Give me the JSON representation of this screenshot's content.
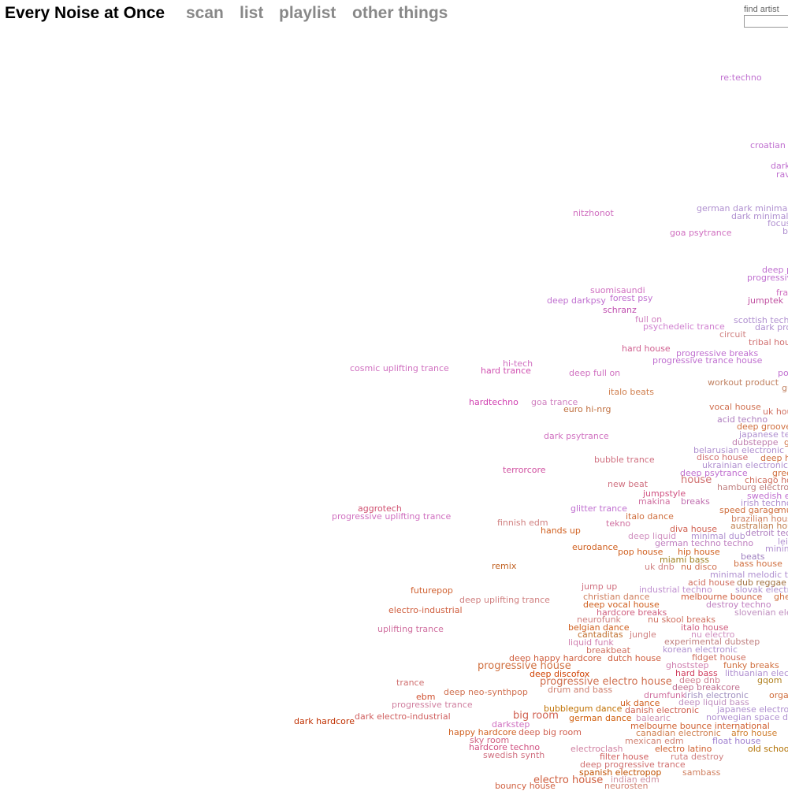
{
  "header": {
    "title": "Every Noise at Once",
    "nav": [
      "scan",
      "list",
      "playlist",
      "other things"
    ]
  },
  "search": {
    "label": "find artist"
  },
  "genres": [
    "re:techno",
    "croatian e",
    "dark",
    "rav",
    "nitzhonot",
    "german dark minimal tec",
    "dark minimal te",
    "focus",
    "goa psytrance",
    "b",
    "deep p",
    "progressive",
    "frar",
    "suomisaundi",
    "forest psy",
    "deep darkpsy",
    "jumptek",
    "schranz",
    "full on",
    "scottish techno",
    "psychedelic trance",
    "dark prog",
    "circuit",
    "tribal hous",
    "hard house",
    "progressive breaks",
    "hi-tech",
    "progressive trance house",
    "cosmic uplifting trance",
    "hard trance",
    "deep full on",
    "pol",
    "workout product",
    "gu",
    "italo beats",
    "hardtechno",
    "goa trance",
    "euro hi-nrg",
    "vocal house",
    "uk hou",
    "acid techno",
    "deep groove",
    "dark psytrance",
    "japanese tec",
    "dubsteppe",
    "g",
    "belarusian electronic",
    "disco house",
    "deep h",
    "bubble trance",
    "ukrainian electronic",
    "terrorcore",
    "deep psytrance",
    "gree",
    "house",
    "new beat",
    "chicago ho",
    "hamburg electroni",
    "jumpstyle",
    "swedish el",
    "makina",
    "breaks",
    "irish techno",
    "aggrotech",
    "glitter trance",
    "speed garage",
    "mu",
    "progressive uplifting trance",
    "italo dance",
    "brazilian house",
    "finnish edm",
    "tekno",
    "australian hous",
    "diva house",
    "hands up",
    "deep liquid",
    "minimal dub",
    "detroit tech",
    "german techno techno",
    "eurodance",
    "lei",
    "pop house",
    "hip house",
    "minim",
    "miami bass",
    "beats",
    "remix",
    "uk dnb",
    "nu disco",
    "bass house",
    "minimal melodic tech",
    "acid house",
    "dub reggae",
    "jump up",
    "futurepop",
    "industrial techno",
    "slovak electr",
    "christian dance",
    "melbourne bounce",
    "ghe",
    "deep uplifting trance",
    "deep vocal house",
    "destroy techno",
    "electro-industrial",
    "hardcore breaks",
    "slovenian ele",
    "neurofunk",
    "nu skool breaks",
    "belgian dance",
    "italo house",
    "uplifting trance",
    "cantaditas",
    "jungle",
    "nu electro",
    "experimental dubstep",
    "liquid funk",
    "breakbeat",
    "korean electronic",
    "deep happy hardcore",
    "dutch house",
    "fidget house",
    "progressive house",
    "ghoststep",
    "funky breaks",
    "deep discofox",
    "hard bass",
    "lithuanian electr",
    "progressive electro house",
    "deep dnb",
    "gqom",
    "trance",
    "drum and bass",
    "deep breakcore",
    "deep neo-synthpop",
    "drumfunk",
    "irish electronic",
    "orga",
    "ebm",
    "uk dance",
    "deep liquid bass",
    "progressive trance",
    "bubblegum dance",
    "danish electronic",
    "japanese electroni",
    "big room",
    "dark electro-industrial",
    "german dance",
    "balearic",
    "norwegian space disc",
    "dark hardcore",
    "darkstep",
    "melbourne bounce international",
    "happy hardcore",
    "deep big room",
    "canadian electronic",
    "afro house",
    "sky room",
    "mexican edm",
    "float house",
    "hardcore techno",
    "electroclash",
    "electro latino",
    "old school",
    "swedish synth",
    "filter house",
    "ruta destroy",
    "deep progressive trance",
    "sambass",
    "spanish electropop",
    "electro house",
    "indian edm",
    "bouncy house",
    "neurosten"
  ]
}
